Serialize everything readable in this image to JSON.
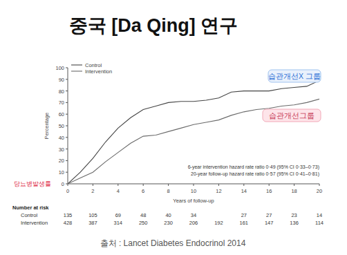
{
  "chart_data": {
    "type": "line",
    "title": "중국 [Da Qing] 연구",
    "x_label": "Years of follow-up",
    "y_label": "Percentage",
    "x": [
      0,
      1,
      2,
      3,
      4,
      5,
      6,
      7,
      8,
      9,
      10,
      11,
      12,
      13,
      14,
      15,
      16,
      17,
      18,
      19,
      20
    ],
    "xlim": [
      0,
      20
    ],
    "ylim": [
      0,
      100
    ],
    "xticks": [
      0,
      2,
      4,
      6,
      8,
      10,
      12,
      14,
      16,
      18,
      20
    ],
    "yticks": [
      0,
      10,
      20,
      30,
      40,
      50,
      60,
      70,
      80,
      90,
      100
    ],
    "grid": false,
    "legend": "top-left",
    "series": [
      {
        "name": "Control",
        "color": "#444444",
        "values": [
          0,
          10,
          22,
          36,
          48,
          57,
          64,
          67,
          70,
          71,
          71,
          72,
          74,
          79,
          80,
          80,
          80,
          82,
          83,
          84,
          89
        ]
      },
      {
        "name": "Intervention",
        "color": "#6a6a6a",
        "values": [
          0,
          5,
          10,
          19,
          27,
          35,
          41,
          42,
          45,
          48,
          51,
          53,
          55,
          59,
          62,
          64,
          65,
          67,
          68,
          70,
          73
        ]
      }
    ],
    "annotations": [
      {
        "text": "습관개선X 그룹",
        "color": "#2a6fd6"
      },
      {
        "text": "습관개선그룹",
        "color": "#c8405a"
      },
      {
        "text": "당뇨병발생률",
        "color": "#e0304a"
      },
      {
        "text": "6-year intervention hazard rate ratio 0·49 (95% CI 0·33–0·73)",
        "color": "#333333"
      },
      {
        "text": "20-year follow-up hazard rate ratio 0·57 (95% CI 0·41–0·81)",
        "color": "#333333"
      }
    ],
    "number_at_risk": {
      "title": "Number at risk",
      "rows": [
        {
          "name": "Control",
          "values": [
            135,
            105,
            69,
            48,
            40,
            34,
            null,
            27,
            27,
            23,
            14
          ]
        },
        {
          "name": "Intervention",
          "values": [
            428,
            387,
            314,
            250,
            230,
            206,
            192,
            161,
            147,
            136,
            114
          ]
        }
      ]
    },
    "source": "출처 : Lancet Diabetes Endocrinol 2014"
  }
}
